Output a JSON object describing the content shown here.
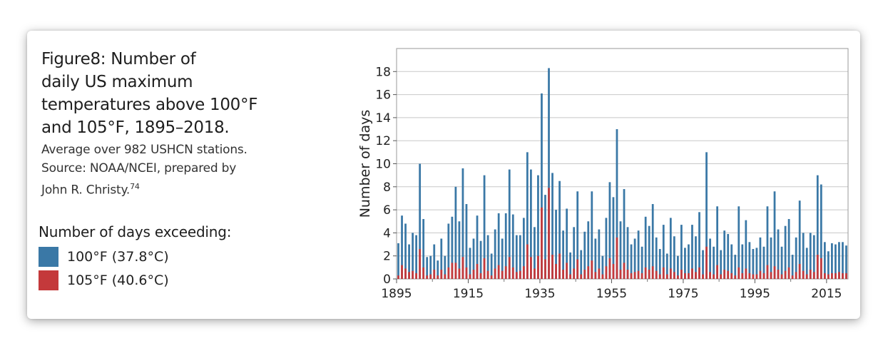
{
  "figure": {
    "title_prefix": "Figure",
    "title_number": "8",
    "title_line1": ": Number of",
    "title_line2": "daily US maximum",
    "title_line3": "temperatures above 100°F",
    "title_line4": "and 105°F, 1895–2018.",
    "caption_line1": "Average over 982 USHCN stations.",
    "caption_line2": "Source: NOAA/NCEI, prepared by",
    "caption_line3": "John R. Christy.",
    "caption_ref": "74"
  },
  "legend": {
    "title": "Number of days exceeding:",
    "items": [
      {
        "label": "100°F (37.8°C)",
        "color": "#3a78a6"
      },
      {
        "label": "105°F (40.6°C)",
        "color": "#c4393b"
      }
    ]
  },
  "chart_data": {
    "type": "bar",
    "ylabel": "Number of days",
    "xlabel": "",
    "ylim": [
      0,
      20
    ],
    "xlim": [
      1895,
      2018
    ],
    "yticks": [
      0,
      2,
      4,
      6,
      8,
      10,
      12,
      14,
      16,
      18
    ],
    "xticks": [
      1895,
      1915,
      1935,
      1955,
      1975,
      1995,
      2015
    ],
    "grid": true,
    "x_start": 1895,
    "series": [
      {
        "name": "100°F (37.8°C)",
        "color": "#3a78a6",
        "values": [
          3.1,
          5.5,
          4.8,
          3.0,
          4.0,
          3.8,
          10.0,
          5.2,
          1.9,
          2.0,
          3.0,
          1.6,
          3.5,
          2.0,
          4.8,
          5.4,
          8.0,
          5.0,
          9.6,
          6.5,
          2.7,
          3.5,
          5.5,
          3.3,
          9.0,
          3.8,
          2.2,
          4.3,
          5.7,
          3.5,
          5.7,
          9.5,
          5.6,
          3.8,
          3.8,
          5.3,
          11.0,
          9.5,
          4.5,
          9.0,
          16.1,
          7.3,
          18.3,
          9.2,
          6.0,
          8.5,
          4.2,
          6.1,
          2.3,
          4.5,
          7.6,
          2.5,
          4.1,
          5.0,
          7.6,
          3.5,
          4.3,
          2.0,
          5.3,
          8.4,
          7.1,
          13.0,
          5.0,
          7.8,
          4.5,
          3.0,
          3.5,
          4.2,
          2.8,
          5.4,
          4.6,
          6.5,
          3.6,
          2.6,
          4.7,
          2.2,
          5.3,
          3.7,
          2.0,
          4.7,
          2.7,
          3.0,
          4.7,
          3.7,
          5.8,
          2.5,
          11.0,
          3.5,
          2.8,
          6.3,
          2.5,
          4.2,
          3.9,
          3.0,
          2.1,
          6.3,
          3.0,
          5.1,
          3.2,
          2.6,
          2.7,
          3.6,
          2.8,
          6.3,
          3.6,
          7.6,
          4.3,
          2.8,
          4.6,
          5.2,
          2.1,
          3.6,
          6.8,
          4.0,
          2.7,
          4.0,
          3.8,
          9.0,
          8.2,
          3.2,
          2.4,
          3.1,
          3.0,
          3.2,
          3.2,
          2.9
        ]
      },
      {
        "name": "105°F (40.6°C)",
        "color": "#c4393b",
        "values": [
          0.3,
          1.2,
          0.9,
          0.6,
          0.7,
          0.5,
          2.6,
          1.0,
          0.3,
          0.4,
          0.8,
          0.3,
          0.8,
          0.4,
          1.0,
          1.4,
          1.4,
          0.9,
          1.9,
          1.0,
          0.4,
          0.8,
          1.3,
          0.5,
          1.8,
          0.7,
          0.3,
          0.9,
          1.2,
          0.7,
          1.1,
          1.9,
          1.0,
          0.6,
          0.7,
          1.1,
          3.0,
          1.9,
          0.9,
          2.0,
          6.2,
          1.7,
          7.9,
          2.1,
          1.3,
          2.2,
          0.8,
          1.4,
          0.4,
          0.9,
          1.7,
          0.4,
          0.8,
          1.1,
          1.6,
          0.6,
          0.9,
          0.4,
          1.1,
          1.8,
          1.3,
          3.6,
          0.8,
          1.4,
          0.8,
          0.5,
          0.6,
          0.7,
          0.5,
          1.0,
          0.8,
          1.1,
          0.7,
          0.4,
          1.0,
          0.4,
          0.9,
          0.6,
          0.3,
          0.8,
          0.5,
          0.5,
          0.9,
          0.6,
          1.0,
          0.4,
          2.8,
          0.6,
          0.4,
          1.2,
          0.4,
          0.8,
          0.7,
          0.5,
          0.3,
          1.0,
          0.5,
          0.9,
          0.5,
          0.4,
          0.4,
          0.7,
          0.5,
          1.2,
          0.6,
          1.1,
          0.8,
          0.4,
          0.7,
          1.0,
          0.3,
          0.6,
          1.3,
          0.7,
          0.4,
          0.8,
          0.6,
          2.1,
          1.8,
          0.5,
          0.4,
          0.5,
          0.5,
          0.6,
          0.5,
          0.5
        ]
      }
    ]
  }
}
